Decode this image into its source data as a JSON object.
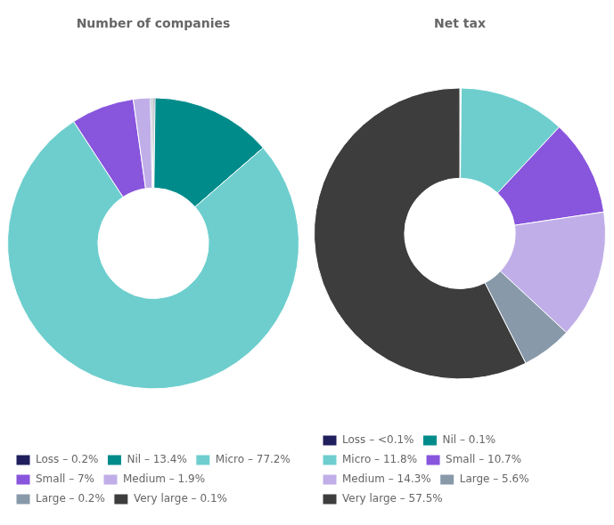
{
  "chart_data": [
    {
      "type": "doughnut",
      "title": "Number of companies",
      "categories": [
        "Loss – 0.2%",
        "Nil – 13.4%",
        "Micro – 77.2%",
        "Small – 7%",
        "Medium – 1.9%",
        "Large – 0.2%",
        "Very large – 0.1%"
      ],
      "values": [
        0.2,
        13.4,
        77.2,
        7.0,
        1.9,
        0.2,
        0.1
      ],
      "colors": [
        "#1f1f5e",
        "#008b8b",
        "#6ecece",
        "#8855dd",
        "#c0aee8",
        "#8899aa",
        "#3d3d3d"
      ],
      "legend": "bottom"
    },
    {
      "type": "doughnut",
      "title": "Net tax",
      "categories": [
        "Loss – <0.1%",
        "Nil – 0.1%",
        "Micro – 11.8%",
        "Small – 10.7%",
        "Medium – 14.3%",
        "Large – 5.6%",
        "Very large – 57.5%"
      ],
      "values": [
        0.05,
        0.1,
        11.8,
        10.7,
        14.3,
        5.6,
        57.5
      ],
      "colors": [
        "#1f1f5e",
        "#008b8b",
        "#6ecece",
        "#8855dd",
        "#c0aee8",
        "#8899aa",
        "#3d3d3d"
      ],
      "legend": "bottom"
    }
  ]
}
